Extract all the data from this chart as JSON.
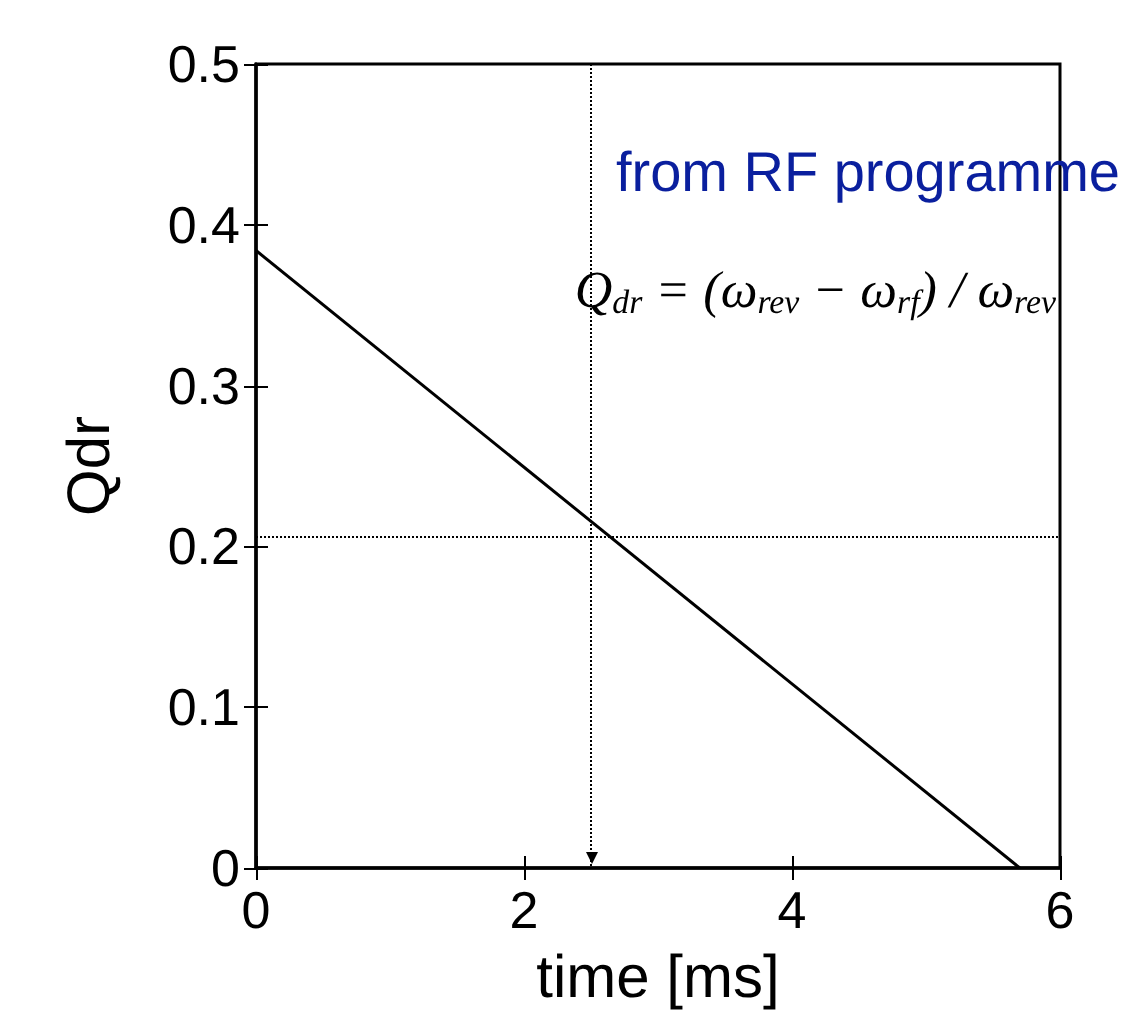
{
  "chart_data": {
    "type": "line",
    "xlabel": "time [ms]",
    "ylabel": "Qdr",
    "x": [
      0,
      5.7
    ],
    "series": [
      {
        "color": "#000000",
        "values": [
          0.384,
          0
        ]
      }
    ],
    "xlim": [
      0,
      6
    ],
    "xticks": [
      0,
      2,
      4,
      6
    ],
    "ylim": [
      0,
      0.5
    ],
    "yticks": [
      0,
      0.1,
      0.2,
      0.3,
      0.4,
      0.5
    ],
    "ref_lines": [
      {
        "axis": "x",
        "value": 2.5,
        "color": "#000000",
        "line_style": "dotted"
      },
      {
        "axis": "y",
        "value": 0.206,
        "color": "#000000",
        "line_style": "dotted"
      }
    ],
    "annotations": [
      "from RF programme",
      "Q$_{dr}$ = (ω$_{rev}$ − ω$_{rf}$) / ω$_{rev}$"
    ],
    "grid": false,
    "marker": "none",
    "line_style": "solid"
  }
}
